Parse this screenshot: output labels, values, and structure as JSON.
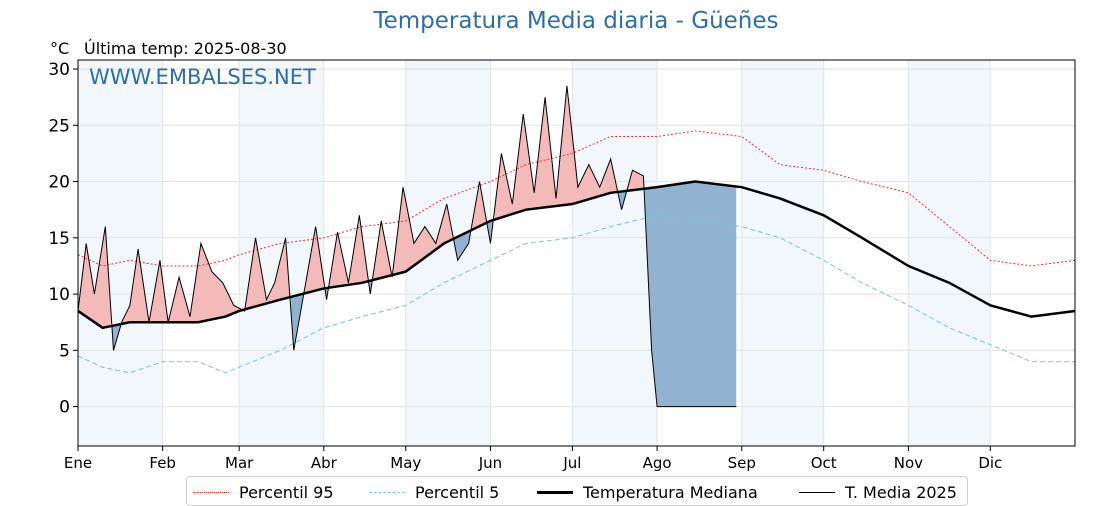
{
  "title": "Temperatura Media diaria - Güeñes",
  "unit": "°C",
  "last_temp": "Última temp: 2025-08-30",
  "watermark": "WWW.EMBALSES.NET",
  "colors": {
    "p95": "#e8322c",
    "p5": "#7ec0d8",
    "median": "#000000",
    "t2025": "#000000",
    "fill_warm": "#f4b9b9",
    "fill_warm_strong": "#f08080",
    "fill_cold": "#8fb3d1",
    "fill_cold_strong": "#2e6ea6",
    "bar": "#2e73aa",
    "band": "#f2f7fc",
    "title": "#2e6ea6"
  },
  "legend": [
    {
      "label": "Percentil 95",
      "style": "dotted-red"
    },
    {
      "label": "Percentil 5",
      "style": "dashed-lightblue"
    },
    {
      "label": "Temperatura Mediana",
      "style": "thick-black"
    },
    {
      "label": "T. Media 2025",
      "style": "thin-black"
    }
  ],
  "chart_data": {
    "type": "line",
    "title": "Temperatura Media diaria - Güeñes",
    "ylabel": "°C",
    "ylim": [
      -3.5,
      30.8
    ],
    "xlim": [
      1,
      366
    ],
    "yticks": [
      0,
      5,
      10,
      15,
      20,
      25,
      30
    ],
    "months": [
      "Ene",
      "Feb",
      "Mar",
      "Abr",
      "May",
      "Jun",
      "Jul",
      "Ago",
      "Sep",
      "Oct",
      "Nov",
      "Dic"
    ],
    "grid": true,
    "legend_position": "bottom",
    "series": [
      {
        "name": "Percentil 95",
        "x": [
          1,
          10,
          20,
          32,
          45,
          55,
          60,
          75,
          91,
          105,
          121,
          135,
          152,
          165,
          182,
          196,
          213,
          227,
          244,
          258,
          274,
          288,
          305,
          320,
          335,
          350,
          366
        ],
        "values": [
          13.5,
          12.5,
          13.0,
          12.5,
          12.5,
          13.0,
          13.5,
          14.5,
          15.0,
          16.0,
          16.5,
          18.5,
          20.0,
          21.5,
          22.5,
          24.0,
          24.0,
          24.5,
          24.0,
          21.5,
          21.0,
          20.0,
          19.0,
          16.0,
          13.0,
          12.5,
          13.0
        ]
      },
      {
        "name": "Percentil 5",
        "x": [
          1,
          10,
          20,
          32,
          45,
          55,
          60,
          75,
          91,
          105,
          121,
          135,
          152,
          165,
          182,
          196,
          213,
          227,
          244,
          258,
          274,
          288,
          305,
          320,
          335,
          350,
          366
        ],
        "values": [
          4.5,
          3.5,
          3.0,
          4.0,
          4.0,
          3.0,
          3.5,
          5.0,
          7.0,
          8.0,
          9.0,
          11.0,
          13.0,
          14.5,
          15.0,
          16.0,
          17.0,
          16.5,
          16.0,
          15.0,
          13.0,
          11.0,
          9.0,
          7.0,
          5.5,
          4.0,
          4.0
        ]
      },
      {
        "name": "Temperatura Mediana",
        "x": [
          1,
          10,
          20,
          32,
          45,
          55,
          60,
          75,
          91,
          105,
          121,
          135,
          152,
          165,
          182,
          196,
          213,
          227,
          244,
          258,
          274,
          288,
          305,
          320,
          335,
          350,
          366
        ],
        "values": [
          8.5,
          7.0,
          7.5,
          7.5,
          7.5,
          8.0,
          8.5,
          9.5,
          10.5,
          11.0,
          12.0,
          14.5,
          16.5,
          17.5,
          18.0,
          19.0,
          19.5,
          20.0,
          19.5,
          18.5,
          17.0,
          15.0,
          12.5,
          11.0,
          9.0,
          8.0,
          8.5
        ]
      },
      {
        "name": "T. Media 2025",
        "x": [
          1,
          4,
          7,
          11,
          14,
          17,
          20,
          23,
          27,
          31,
          34,
          38,
          42,
          46,
          50,
          54,
          58,
          62,
          66,
          70,
          73,
          77,
          80,
          84,
          88,
          92,
          96,
          100,
          104,
          108,
          112,
          116,
          120,
          124,
          128,
          132,
          136,
          140,
          144,
          148,
          152,
          156,
          160,
          164,
          168,
          172,
          176,
          180,
          184,
          188,
          192,
          196,
          200,
          204,
          208,
          211,
          213,
          215,
          218,
          222,
          226,
          230,
          234,
          238,
          242
        ],
        "values": [
          8.5,
          14.5,
          10.0,
          16.0,
          5.0,
          7.5,
          9.0,
          14.0,
          7.5,
          13.0,
          7.5,
          11.5,
          8.0,
          14.5,
          12.0,
          11.0,
          9.0,
          8.5,
          15.0,
          9.5,
          11.0,
          15.0,
          5.0,
          10.5,
          16.0,
          9.5,
          15.5,
          11.0,
          17.0,
          10.0,
          16.5,
          11.5,
          19.5,
          14.5,
          16.0,
          14.5,
          18.0,
          13.0,
          14.5,
          20.0,
          14.5,
          22.5,
          18.0,
          26.0,
          19.0,
          27.5,
          18.5,
          28.5,
          19.5,
          21.5,
          19.5,
          22.0,
          17.5,
          21.0,
          20.5,
          5.0,
          0.0,
          0.0,
          0.0,
          0.0,
          0.0,
          0.0,
          0.0,
          0.0,
          0.0
        ]
      }
    ]
  }
}
